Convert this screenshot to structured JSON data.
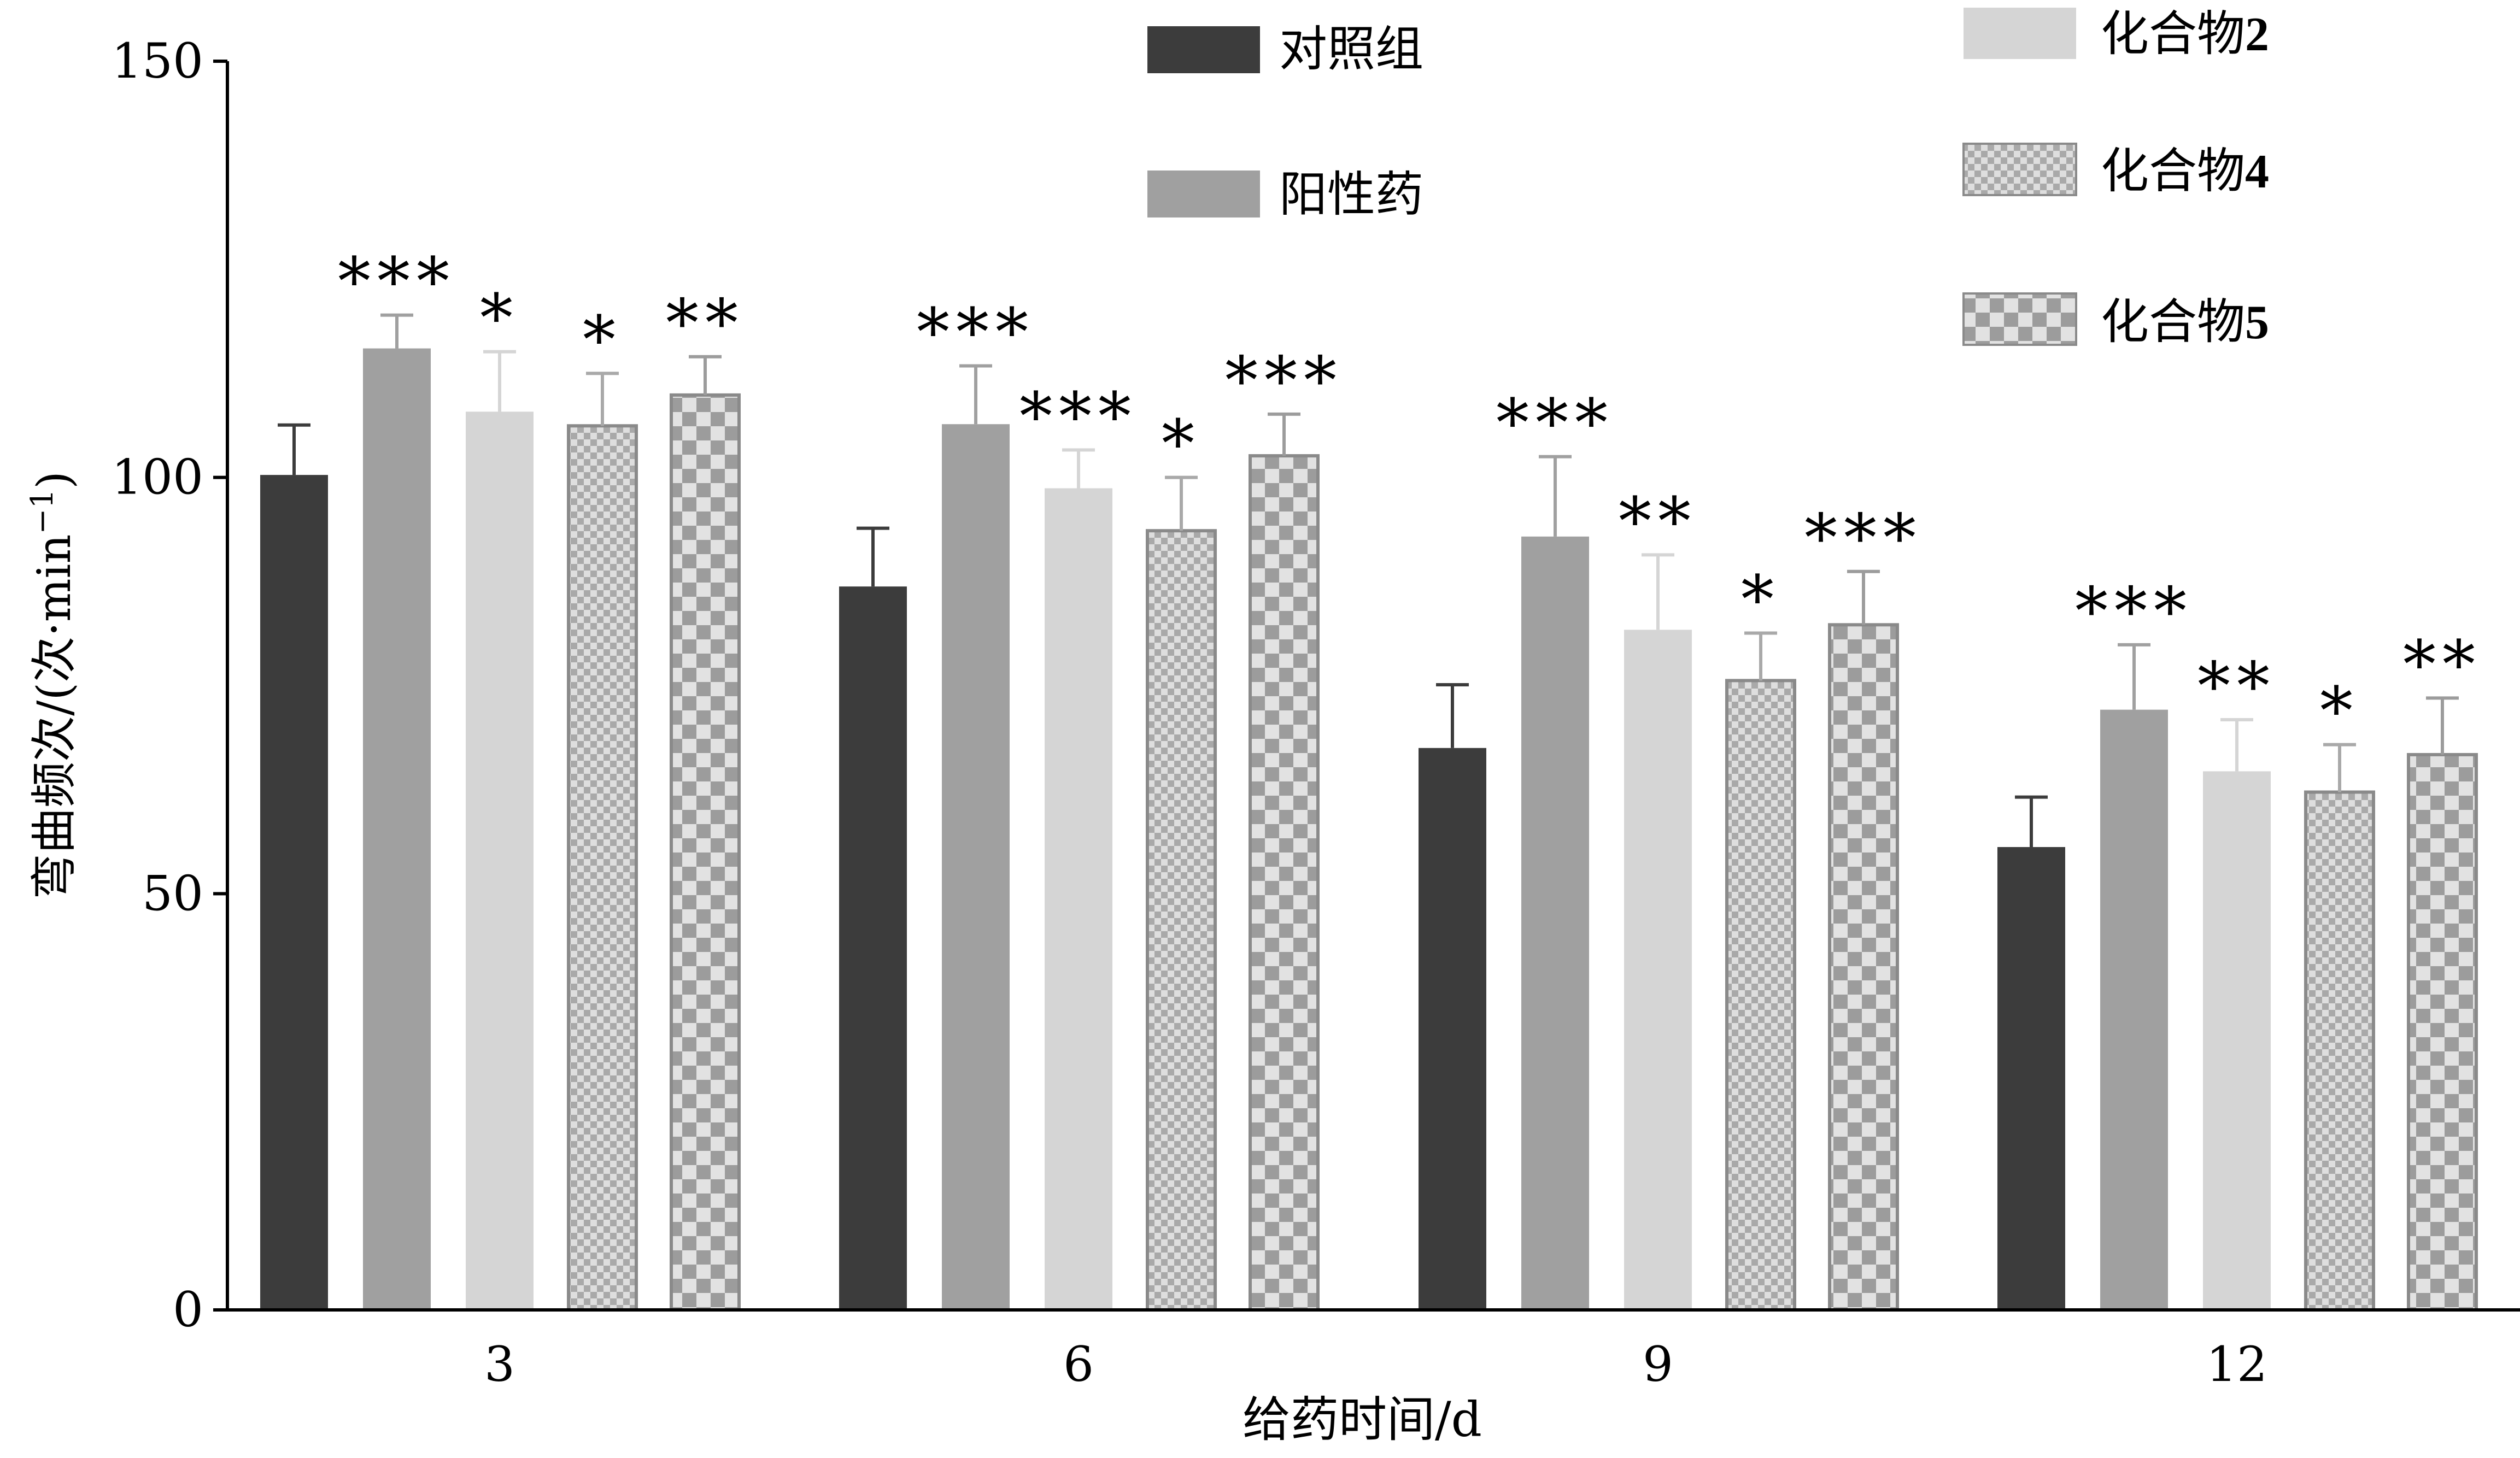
{
  "chart_data": {
    "type": "bar",
    "xlabel": "给药时间/d",
    "ylabel_main": "弯曲频次/(次·min",
    "ylabel_sup": "−1",
    "ylabel_close": ")",
    "ylim": [
      0,
      150
    ],
    "yticks": [
      0,
      50,
      100,
      150
    ],
    "categories": [
      "3",
      "6",
      "9",
      "12"
    ],
    "series": [
      {
        "name": "对照组",
        "values": [
          100.3,
          86.9,
          67.5,
          55.6
        ],
        "errors": [
          6.0,
          7.0,
          7.6,
          6.0
        ],
        "significance": [
          "",
          "",
          "",
          ""
        ]
      },
      {
        "name": "阳性药",
        "values": [
          115.5,
          106.4,
          92.9,
          72.1
        ],
        "errors": [
          4.0,
          7.0,
          9.6,
          7.8
        ],
        "significance": [
          "***",
          "***",
          "***",
          "***"
        ]
      },
      {
        "name": "化合物2",
        "values": [
          107.9,
          98.7,
          81.7,
          64.7
        ],
        "errors": [
          7.2,
          4.6,
          9.0,
          6.2
        ],
        "significance": [
          "*",
          "***",
          "**",
          "**"
        ]
      },
      {
        "name": "化合物4",
        "values": [
          106.2,
          93.6,
          75.6,
          62.2
        ],
        "errors": [
          6.3,
          6.4,
          5.7,
          5.7
        ],
        "significance": [
          "*",
          "*",
          "*",
          "*"
        ]
      },
      {
        "name": "化合物5",
        "values": [
          109.9,
          102.6,
          82.3,
          66.7
        ],
        "errors": [
          4.6,
          5.0,
          6.4,
          6.8
        ],
        "significance": [
          "**",
          "***",
          "***",
          "**"
        ]
      }
    ],
    "legend_position": "top",
    "grid": false
  },
  "colors": {
    "axis": "#000000",
    "对照组": "#3c3c3c",
    "阳性药": "#a0a0a0",
    "化合物2": "#d5d5d5",
    "化合物4": "#a9a9a9",
    "化合物5": "#9c9c9c",
    "pattern_light": "#dedede",
    "pattern_light_5": "#e2e2e2"
  },
  "legend": {
    "items": [
      {
        "label_prefix": "对照组",
        "label_suffix": ""
      },
      {
        "label_prefix": "阳性药",
        "label_suffix": ""
      },
      {
        "label_prefix": "化合物",
        "label_suffix": "2"
      },
      {
        "label_prefix": "化合物",
        "label_suffix": "4"
      },
      {
        "label_prefix": "化合物",
        "label_suffix": "5"
      }
    ]
  }
}
